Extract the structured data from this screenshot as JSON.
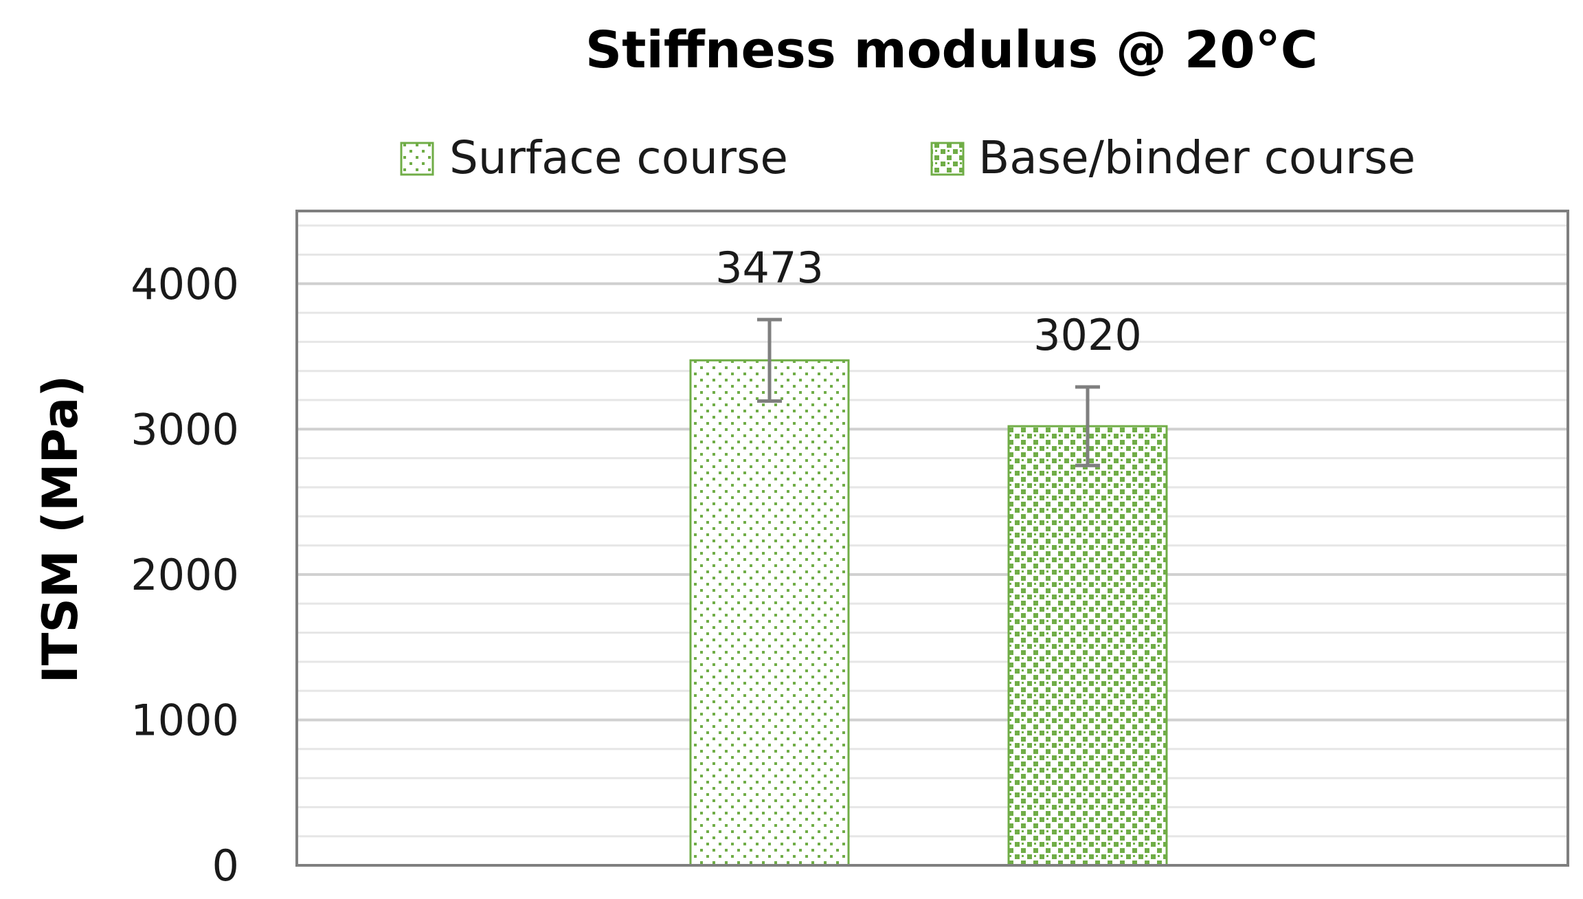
{
  "chart_data": {
    "type": "bar",
    "title": "Stiffness modulus @ 20°C",
    "ylabel": "ITSM  (MPa)",
    "xlabel": "",
    "ylim": [
      0,
      4500
    ],
    "yticks": [
      0,
      1000,
      2000,
      3000,
      4000
    ],
    "minor_gridlines": true,
    "legend_position": "top",
    "series": [
      {
        "name": "Surface course",
        "value": 3473,
        "error": 280,
        "label": "3473",
        "color": "#6fb046",
        "pattern": "sparse-dots"
      },
      {
        "name": "Base/binder course",
        "value": 3020,
        "error": 270,
        "label": "3020",
        "color": "#6fb046",
        "pattern": "dense-squares"
      }
    ],
    "colors": {
      "bar_outline": "#70ad47",
      "bar_fill_mark": "#70ad47",
      "error_bar": "#7f7f7f",
      "grid_major": "#d0d0d0",
      "grid_minor": "#e6e6e6",
      "plot_border": "#7f7f7f"
    }
  }
}
